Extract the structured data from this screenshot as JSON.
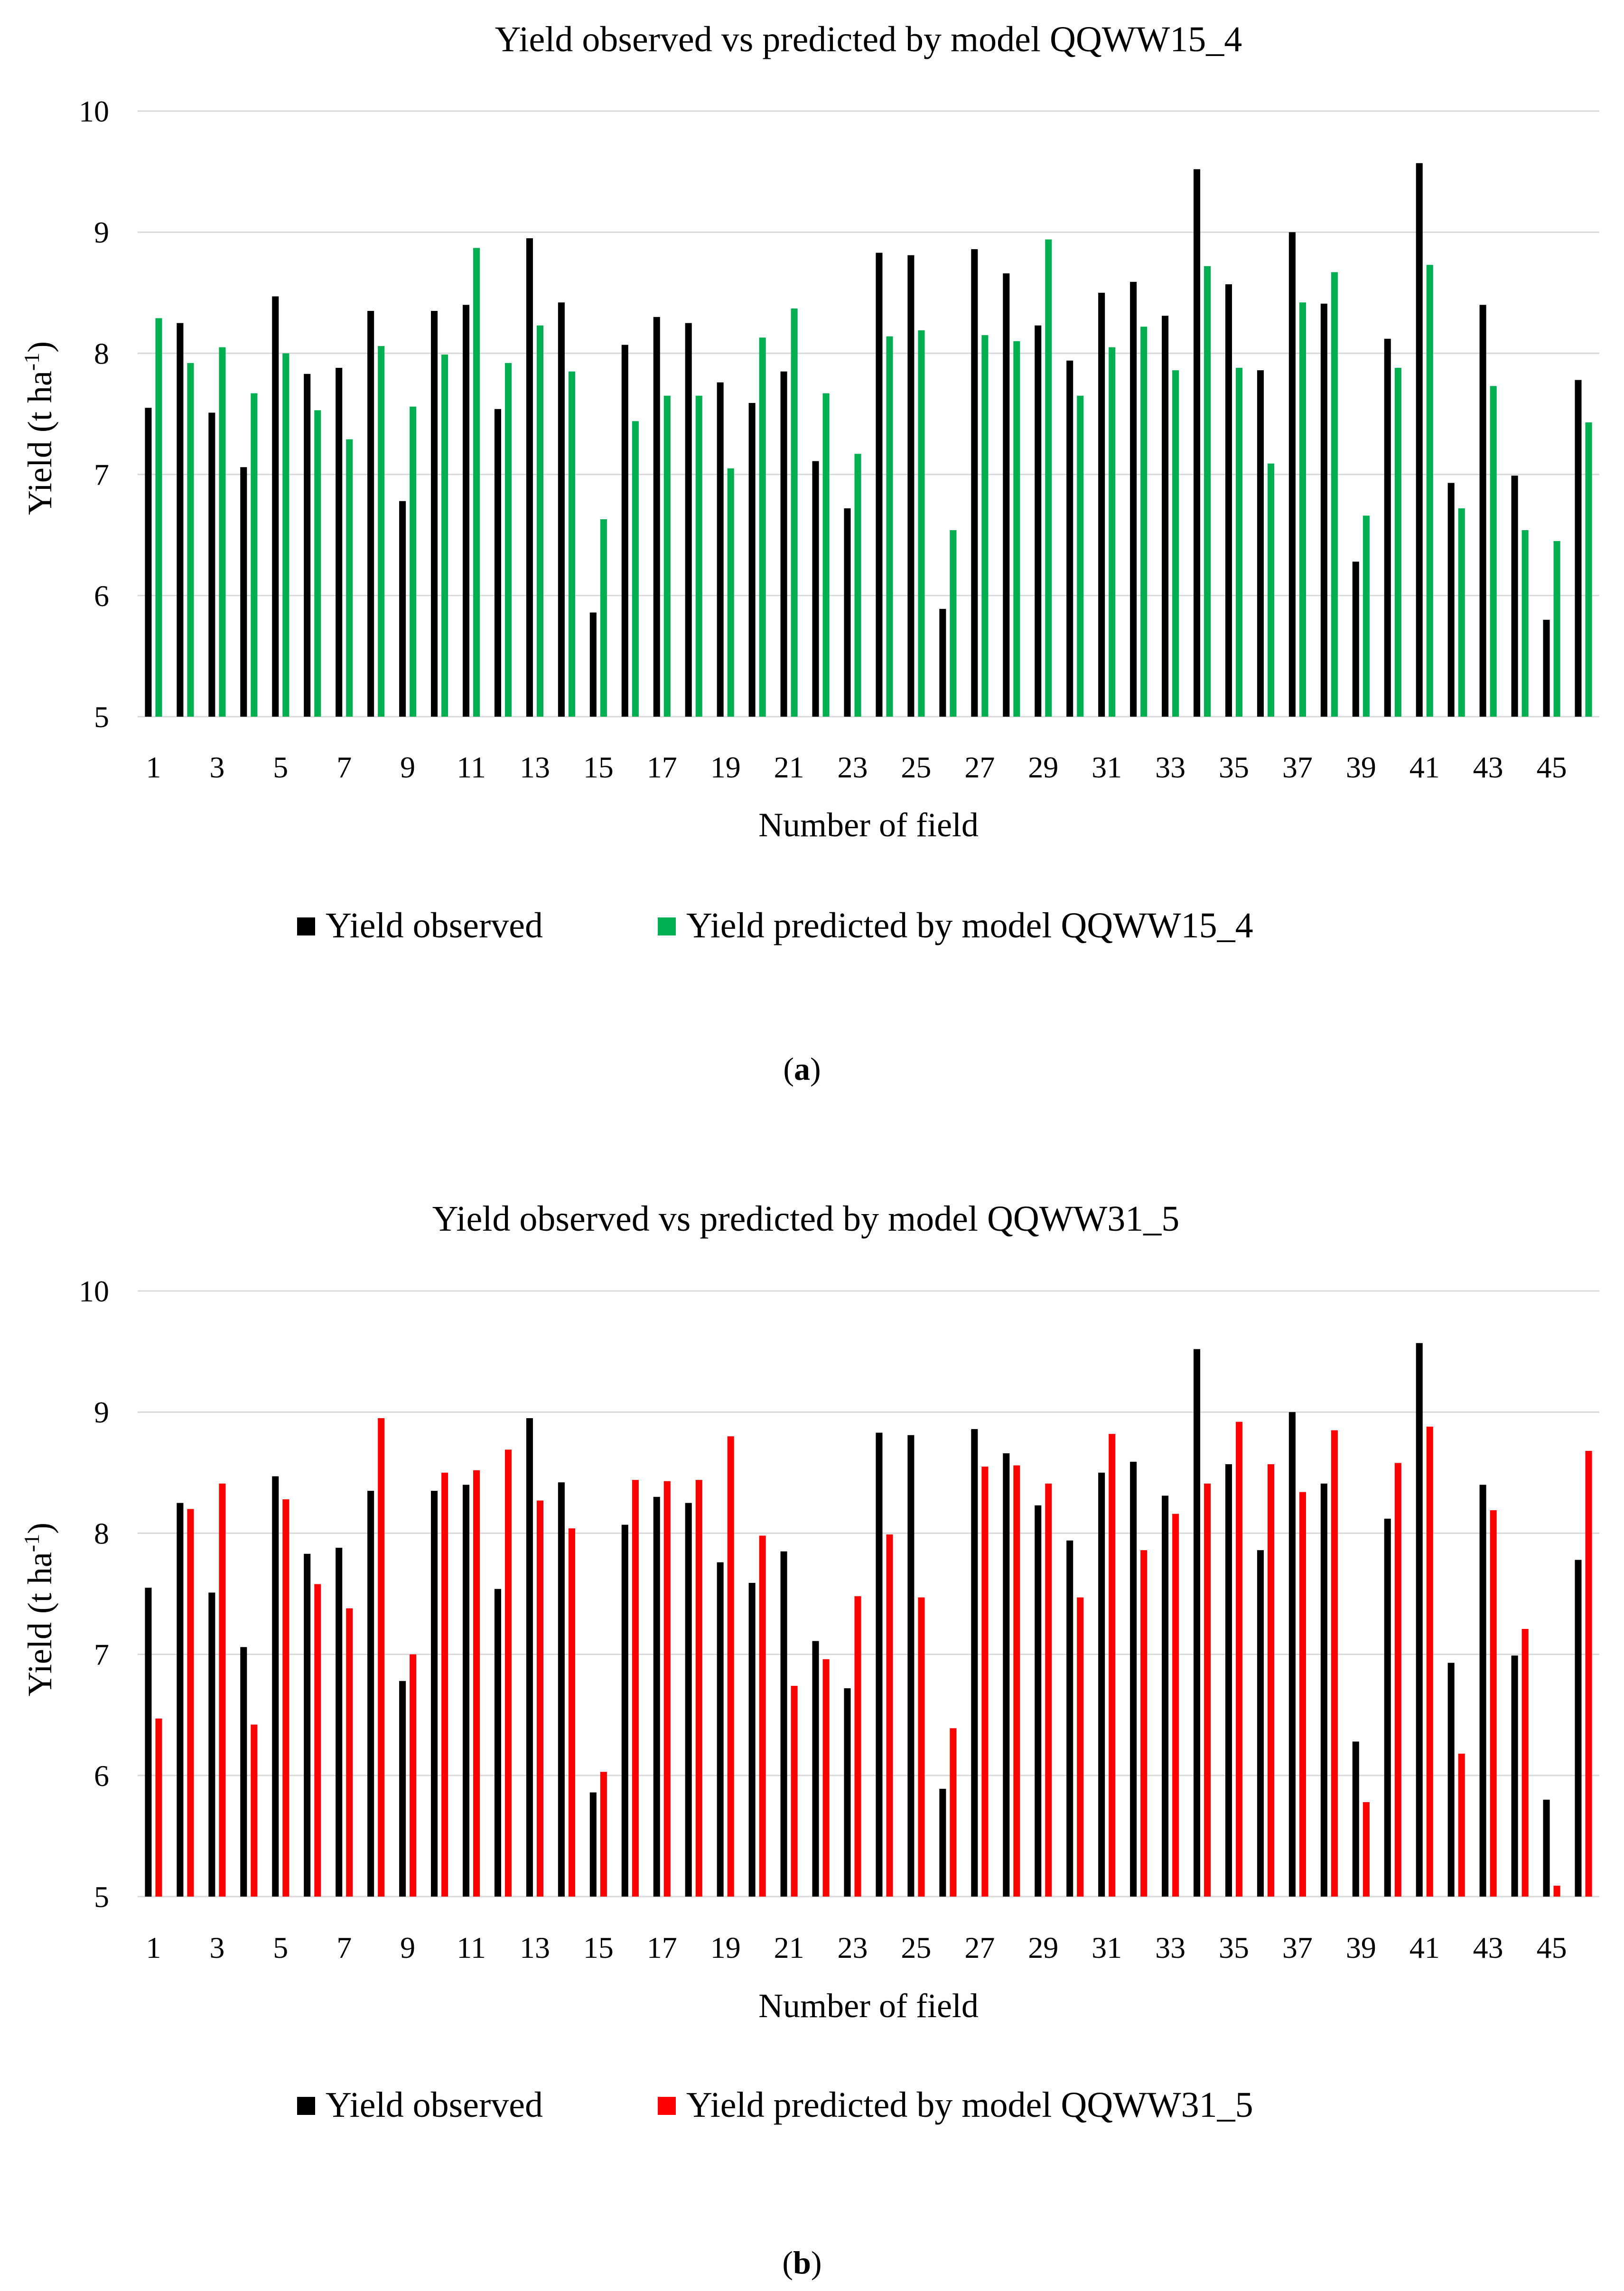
{
  "chart_data": [
    {
      "type": "bar",
      "panel_label": "a",
      "title": "Yield observed vs predicted by model QQWW15_4",
      "xlabel": "Number of field",
      "ylabel_main": "Yield (t ha",
      "ylabel_sup": "-1",
      "ylabel_tail": ")",
      "ylim": [
        5,
        10
      ],
      "yticks": [
        5,
        6,
        7,
        8,
        9,
        10
      ],
      "grid": true,
      "legend_position": "bottom",
      "categories": [
        1,
        2,
        3,
        4,
        5,
        6,
        7,
        8,
        9,
        10,
        11,
        12,
        13,
        14,
        15,
        16,
        17,
        18,
        19,
        20,
        21,
        22,
        23,
        24,
        25,
        26,
        27,
        28,
        29,
        30,
        31,
        32,
        33,
        34,
        35,
        36,
        37,
        38,
        39,
        40,
        41,
        42,
        43,
        44,
        45,
        46
      ],
      "x_tick_labels": [
        1,
        3,
        5,
        7,
        9,
        11,
        13,
        15,
        17,
        19,
        21,
        23,
        25,
        27,
        29,
        31,
        33,
        35,
        37,
        39,
        41,
        43,
        45
      ],
      "series": [
        {
          "name": "Yield observed",
          "color": "#000000",
          "values": [
            7.55,
            8.25,
            7.51,
            7.06,
            8.47,
            7.83,
            7.88,
            8.35,
            6.78,
            8.35,
            8.4,
            7.54,
            8.95,
            8.42,
            5.86,
            8.07,
            8.3,
            8.25,
            7.76,
            7.59,
            7.85,
            7.11,
            6.72,
            8.83,
            8.81,
            5.89,
            8.86,
            8.66,
            8.23,
            7.94,
            8.5,
            8.59,
            8.31,
            9.52,
            8.57,
            7.86,
            9.0,
            8.41,
            6.28,
            8.12,
            9.57,
            6.93,
            8.4,
            6.99,
            5.8,
            7.78
          ]
        },
        {
          "name": "Yield predicted by model QQWW15_4",
          "color": "#00b050",
          "values": [
            8.29,
            7.92,
            8.05,
            7.67,
            8.0,
            7.53,
            7.29,
            8.06,
            7.56,
            7.99,
            8.87,
            7.92,
            8.23,
            7.85,
            6.63,
            7.44,
            7.65,
            7.65,
            7.05,
            8.13,
            8.37,
            7.67,
            7.17,
            8.14,
            8.19,
            6.54,
            8.15,
            8.1,
            8.94,
            7.65,
            8.05,
            8.22,
            7.86,
            8.72,
            7.88,
            7.09,
            8.42,
            8.67,
            6.66,
            7.88,
            8.73,
            6.72,
            7.73,
            6.54,
            6.45,
            7.43
          ]
        }
      ]
    },
    {
      "type": "bar",
      "panel_label": "b",
      "title": "Yield observed vs predicted by model QQWW31_5",
      "xlabel": "Number of field",
      "ylabel_main": "Yield (t ha",
      "ylabel_sup": "-1",
      "ylabel_tail": ")",
      "ylim": [
        5,
        10
      ],
      "yticks": [
        5,
        6,
        7,
        8,
        9,
        10
      ],
      "grid": true,
      "legend_position": "bottom",
      "categories": [
        1,
        2,
        3,
        4,
        5,
        6,
        7,
        8,
        9,
        10,
        11,
        12,
        13,
        14,
        15,
        16,
        17,
        18,
        19,
        20,
        21,
        22,
        23,
        24,
        25,
        26,
        27,
        28,
        29,
        30,
        31,
        32,
        33,
        34,
        35,
        36,
        37,
        38,
        39,
        40,
        41,
        42,
        43,
        44,
        45,
        46
      ],
      "x_tick_labels": [
        1,
        3,
        5,
        7,
        9,
        11,
        13,
        15,
        17,
        19,
        21,
        23,
        25,
        27,
        29,
        31,
        33,
        35,
        37,
        39,
        41,
        43,
        45
      ],
      "series": [
        {
          "name": "Yield observed",
          "color": "#000000",
          "values": [
            7.55,
            8.25,
            7.51,
            7.06,
            8.47,
            7.83,
            7.88,
            8.35,
            6.78,
            8.35,
            8.4,
            7.54,
            8.95,
            8.42,
            5.86,
            8.07,
            8.3,
            8.25,
            7.76,
            7.59,
            7.85,
            7.11,
            6.72,
            8.83,
            8.81,
            5.89,
            8.86,
            8.66,
            8.23,
            7.94,
            8.5,
            8.59,
            8.31,
            9.52,
            8.57,
            7.86,
            9.0,
            8.41,
            6.28,
            8.12,
            9.57,
            6.93,
            8.4,
            6.99,
            5.8,
            7.78
          ]
        },
        {
          "name": "Yield predicted by model QQWW31_5",
          "color": "#ff0000",
          "values": [
            6.47,
            8.2,
            8.41,
            6.42,
            8.28,
            7.58,
            7.38,
            8.95,
            7.0,
            8.5,
            8.52,
            8.69,
            8.27,
            8.04,
            6.03,
            8.44,
            8.43,
            8.44,
            8.8,
            7.98,
            6.74,
            6.96,
            7.48,
            7.99,
            7.47,
            6.39,
            8.55,
            8.56,
            8.41,
            7.47,
            8.82,
            7.86,
            8.16,
            8.41,
            8.92,
            8.57,
            8.34,
            8.85,
            5.78,
            8.58,
            8.88,
            6.18,
            8.19,
            7.21,
            5.09,
            8.68
          ]
        }
      ]
    }
  ]
}
